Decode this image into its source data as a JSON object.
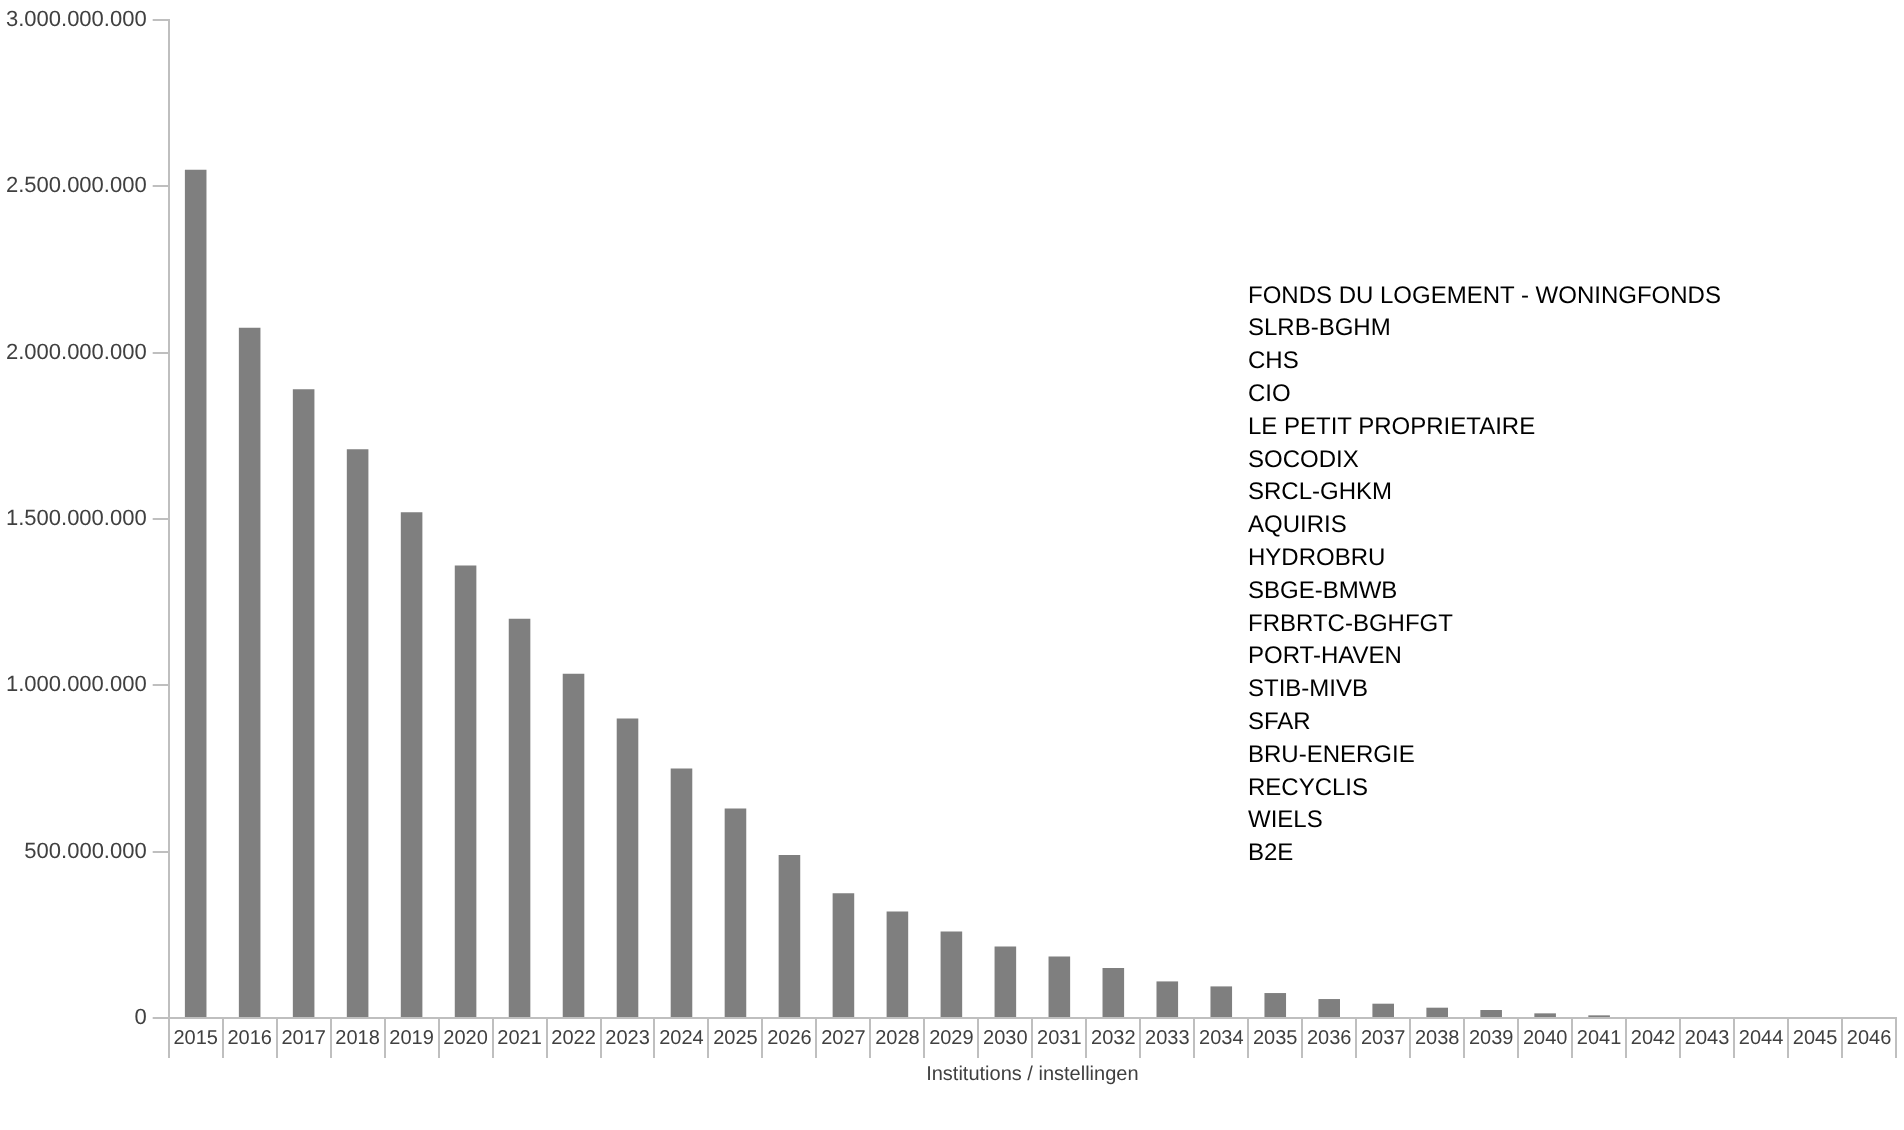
{
  "chart_data": {
    "type": "bar",
    "xlabel": "Institutions / instellingen",
    "categories": [
      "2015",
      "2016",
      "2017",
      "2018",
      "2019",
      "2020",
      "2021",
      "2022",
      "2023",
      "2024",
      "2025",
      "2026",
      "2027",
      "2028",
      "2029",
      "2030",
      "2031",
      "2032",
      "2033",
      "2034",
      "2035",
      "2036",
      "2037",
      "2038",
      "2039",
      "2040",
      "2041",
      "2042",
      "2043",
      "2044",
      "2045",
      "2046"
    ],
    "values": [
      2550000000,
      2075000000,
      1890000000,
      1710000000,
      1520000000,
      1360000000,
      1200000000,
      1035000000,
      900000000,
      750000000,
      630000000,
      490000000,
      375000000,
      320000000,
      260000000,
      215000000,
      185000000,
      150000000,
      110000000,
      95000000,
      75000000,
      57000000,
      43000000,
      31000000,
      24000000,
      14000000,
      8000000,
      3000000,
      0,
      0,
      0,
      0
    ],
    "color": "#7f7f7f",
    "ylim": [
      0,
      3000000000
    ],
    "yticks": [
      {
        "value": 0,
        "label": "0"
      },
      {
        "value": 500000000,
        "label": "500.000.000"
      },
      {
        "value": 1000000000,
        "label": "1.000.000.000"
      },
      {
        "value": 1500000000,
        "label": "1.500.000.000"
      },
      {
        "value": 2000000000,
        "label": "2.000.000.000"
      },
      {
        "value": 2500000000,
        "label": "2.500.000.000"
      },
      {
        "value": 3000000000,
        "label": "3.000.000.000"
      }
    ],
    "grid": false,
    "legend": false,
    "annotations": [
      "FONDS DU LOGEMENT - WONINGFONDS",
      "SLRB-BGHM",
      "CHS",
      "CIO",
      "LE PETIT PROPRIETAIRE",
      "SOCODIX",
      "SRCL-GHKM",
      "AQUIRIS",
      "HYDROBRU",
      "SBGE-BMWB",
      "FRBRTC-BGHFGT",
      "PORT-HAVEN",
      "STIB-MIVB",
      "SFAR",
      "BRU-ENERGIE",
      "RECYCLIS",
      "WIELS",
      "B2E"
    ]
  }
}
